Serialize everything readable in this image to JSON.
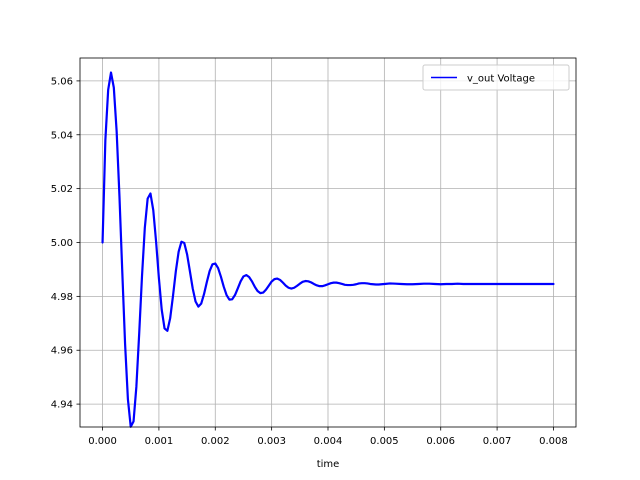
{
  "chart_data": {
    "type": "line",
    "title": "",
    "xlabel": "time",
    "ylabel": "",
    "xlim": [
      -0.0004,
      0.0084
    ],
    "ylim": [
      4.9315,
      5.0685
    ],
    "grid": true,
    "legend": {
      "position": "top-right"
    },
    "x_ticks": [
      0.0,
      0.001,
      0.002,
      0.003,
      0.004,
      0.005,
      0.006,
      0.007,
      0.008
    ],
    "x_tick_labels": [
      "0.000",
      "0.001",
      "0.002",
      "0.003",
      "0.004",
      "0.005",
      "0.006",
      "0.007",
      "0.008"
    ],
    "y_ticks": [
      4.94,
      4.96,
      4.98,
      5.0,
      5.02,
      5.04,
      5.06
    ],
    "y_tick_labels": [
      "4.94",
      "4.96",
      "4.98",
      "5.00",
      "5.02",
      "5.04",
      "5.06"
    ],
    "series": [
      {
        "name": "v_out Voltage",
        "color": "#0000ff",
        "x": [
          0.0,
          5e-05,
          0.0001,
          0.00015,
          0.0002,
          0.00025,
          0.0003,
          0.00035,
          0.0004,
          0.00045,
          0.0005,
          0.00055,
          0.0006,
          0.00065,
          0.0007,
          0.00075,
          0.0008,
          0.00085,
          0.0009,
          0.00095,
          0.001,
          0.00105,
          0.0011,
          0.00115,
          0.0012,
          0.00125,
          0.0013,
          0.00135,
          0.0014,
          0.00145,
          0.0015,
          0.00155,
          0.0016,
          0.00165,
          0.0017,
          0.00175,
          0.0018,
          0.00185,
          0.0019,
          0.00195,
          0.002,
          0.00205,
          0.0021,
          0.00215,
          0.0022,
          0.00225,
          0.0023,
          0.00235,
          0.0024,
          0.00245,
          0.0025,
          0.00255,
          0.0026,
          0.00265,
          0.0027,
          0.00275,
          0.0028,
          0.00285,
          0.0029,
          0.00295,
          0.003,
          0.00305,
          0.0031,
          0.00315,
          0.0032,
          0.00325,
          0.0033,
          0.00335,
          0.0034,
          0.00345,
          0.0035,
          0.00355,
          0.0036,
          0.00365,
          0.0037,
          0.00375,
          0.0038,
          0.00385,
          0.0039,
          0.00395,
          0.004,
          0.00405,
          0.0041,
          0.00415,
          0.0042,
          0.00425,
          0.0043,
          0.00435,
          0.0044,
          0.00445,
          0.0045,
          0.00455,
          0.0046,
          0.00465,
          0.0047,
          0.00475,
          0.0048,
          0.00485,
          0.0049,
          0.00495,
          0.005,
          0.0051,
          0.0052,
          0.0053,
          0.0054,
          0.0055,
          0.0056,
          0.0057,
          0.0058,
          0.0059,
          0.006,
          0.0061,
          0.0062,
          0.0063,
          0.0064,
          0.0065,
          0.0066,
          0.0067,
          0.0068,
          0.0069,
          0.007,
          0.0071,
          0.0072,
          0.0073,
          0.0074,
          0.0075,
          0.0076,
          0.0077,
          0.0078,
          0.0079,
          0.008
        ],
        "y": [
          5.0,
          5.038,
          5.0567,
          5.0631,
          5.0575,
          5.0413,
          5.0172,
          4.9892,
          4.9623,
          4.9418,
          4.9316,
          4.9336,
          4.9464,
          4.9661,
          4.9875,
          5.0055,
          5.0163,
          5.0182,
          5.012,
          5.0003,
          4.9867,
          4.975,
          4.9681,
          4.9672,
          4.9719,
          4.9802,
          4.9893,
          4.9966,
          5.0003,
          4.9998,
          4.9956,
          4.9893,
          4.9829,
          4.9781,
          4.9762,
          4.9773,
          4.9808,
          4.9853,
          4.9894,
          4.9919,
          4.9922,
          4.9905,
          4.9873,
          4.9836,
          4.9805,
          4.9788,
          4.9789,
          4.9805,
          4.983,
          4.9856,
          4.9874,
          4.9879,
          4.9872,
          4.9856,
          4.9836,
          4.982,
          4.9812,
          4.9814,
          4.9825,
          4.984,
          4.9855,
          4.9864,
          4.9866,
          4.9861,
          4.9851,
          4.984,
          4.9832,
          4.9829,
          4.9832,
          4.9839,
          4.9847,
          4.9854,
          4.9857,
          4.9856,
          4.9852,
          4.9846,
          4.9841,
          4.9838,
          4.9838,
          4.9841,
          4.9845,
          4.9849,
          4.9851,
          4.9851,
          4.9849,
          4.9846,
          4.9843,
          4.9842,
          4.9842,
          4.9843,
          4.9845,
          4.9848,
          4.9849,
          4.9849,
          4.9848,
          4.9846,
          4.9845,
          4.9844,
          4.9844,
          4.9845,
          4.9846,
          4.9848,
          4.9847,
          4.9846,
          4.9845,
          4.9845,
          4.9846,
          4.9847,
          4.9847,
          4.9846,
          4.9845,
          4.9846,
          4.9846,
          4.9847,
          4.9846,
          4.9846,
          4.9846,
          4.9846,
          4.9846,
          4.9846,
          4.9846,
          4.9846,
          4.9846,
          4.9846,
          4.9846,
          4.9846,
          4.9846,
          4.9846,
          4.9846,
          4.9846,
          4.9846
        ]
      }
    ]
  }
}
